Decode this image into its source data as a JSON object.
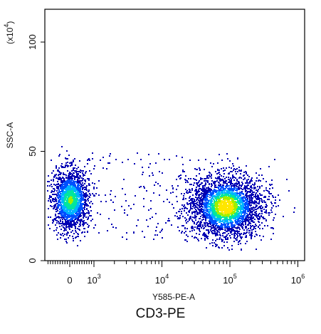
{
  "caption": "CD3-PE",
  "colors": {
    "axis": "#000000",
    "background": "#ffffff",
    "density": [
      "#0000b4",
      "#0050ff",
      "#00b4ff",
      "#00e6a0",
      "#a0f000",
      "#ffe600"
    ]
  },
  "chart_data": {
    "type": "scatter",
    "title": "",
    "xlabel": "Y585-PE-A",
    "ylabel": "SSC-A",
    "y_multiplier": "(x10",
    "y_multiplier_exponent": "4",
    "y_multiplier_close": ")",
    "x_scale": "biexponential",
    "xlim": [
      -400,
      1000000
    ],
    "ylim": [
      0,
      115
    ],
    "x_ticks": [
      {
        "base": "0",
        "exp": "",
        "value": 0
      },
      {
        "base": "10",
        "exp": "3",
        "value": 1000
      },
      {
        "base": "10",
        "exp": "4",
        "value": 10000
      },
      {
        "base": "10",
        "exp": "5",
        "value": 100000
      },
      {
        "base": "10",
        "exp": "6",
        "value": 1000000
      }
    ],
    "y_ticks": [
      {
        "label": "0",
        "value": 0
      },
      {
        "label": "50",
        "value": 50
      },
      {
        "label": "100",
        "value": 100
      }
    ],
    "grid": false,
    "legend": "none",
    "color_encoding": "point density (blue = low, yellow-green = high)",
    "populations": [
      {
        "x_center": 0,
        "x_range": [
          -300,
          2500
        ],
        "y_center": 28,
        "y_range": [
          10,
          53
        ],
        "relative_count": 0.4
      },
      {
        "x_center": 85000,
        "x_range": [
          6000,
          500000
        ],
        "y_center": 25,
        "y_range": [
          8,
          53
        ],
        "relative_count": 0.6
      }
    ]
  }
}
